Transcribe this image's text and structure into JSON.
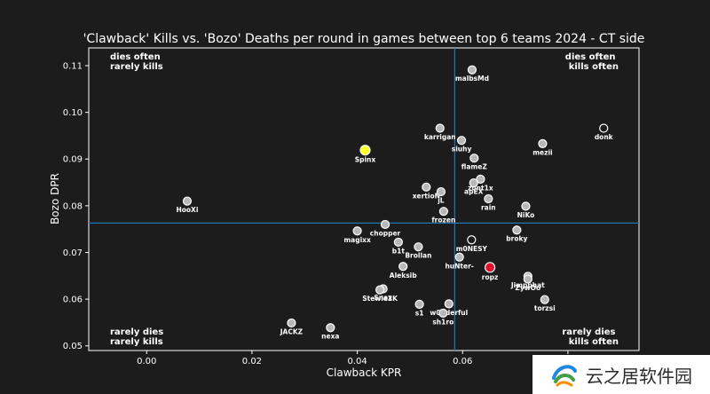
{
  "chart_data": {
    "type": "scatter",
    "title": "'Clawback' Kills vs. 'Bozo' Deaths per round in games between top 6 teams 2024 - CT side",
    "xlabel": "Clawback KPR",
    "ylabel": "Bozo DPR",
    "xlim": [
      -0.011,
      0.0935
    ],
    "ylim": [
      0.049,
      0.1138
    ],
    "xticks": [
      0.0,
      0.02,
      0.04,
      0.06,
      0.08
    ],
    "xtick_labels": [
      "0.00",
      "0.02",
      "0.04",
      "0.06",
      "0.08"
    ],
    "yticks": [
      0.05,
      0.06,
      0.07,
      0.08,
      0.09,
      0.1,
      0.11
    ],
    "ytick_labels": [
      "0.05",
      "0.06",
      "0.07",
      "0.08",
      "0.09",
      "0.10",
      "0.11"
    ],
    "grid": false,
    "reference_lines": {
      "x_mean": 0.0585,
      "y_mean": 0.0763
    },
    "quadrant_labels": {
      "top_left": [
        "dies often",
        "rarely kills"
      ],
      "top_right": [
        "dies often",
        "kills often"
      ],
      "bottom_left": [
        "rarely dies",
        "rarely kills"
      ],
      "bottom_right": [
        "rarely dies",
        "kills often"
      ]
    },
    "points": [
      {
        "name": "malbsMd",
        "x": 0.0618,
        "y": 0.1091
      },
      {
        "name": "donk",
        "x": 0.0868,
        "y": 0.0966,
        "style": "hollow"
      },
      {
        "name": "karrigan",
        "x": 0.0557,
        "y": 0.0966
      },
      {
        "name": "siuhy",
        "x": 0.0598,
        "y": 0.094
      },
      {
        "name": "mezii",
        "x": 0.0752,
        "y": 0.0933
      },
      {
        "name": "Spinx",
        "x": 0.0415,
        "y": 0.0919,
        "style": "yellow"
      },
      {
        "name": "flameZ",
        "x": 0.0622,
        "y": 0.0902
      },
      {
        "name": "zont1x",
        "x": 0.0634,
        "y": 0.0857
      },
      {
        "name": "apEX",
        "x": 0.0621,
        "y": 0.0849
      },
      {
        "name": "xertioN",
        "x": 0.0531,
        "y": 0.084
      },
      {
        "name": "jL",
        "x": 0.0559,
        "y": 0.083
      },
      {
        "name": "rain",
        "x": 0.0649,
        "y": 0.0815
      },
      {
        "name": "HooXi",
        "x": 0.0077,
        "y": 0.081
      },
      {
        "name": "NiKo",
        "x": 0.072,
        "y": 0.0799
      },
      {
        "name": "frozen",
        "x": 0.0564,
        "y": 0.0788
      },
      {
        "name": "chopper",
        "x": 0.0453,
        "y": 0.076
      },
      {
        "name": "magixx",
        "x": 0.04,
        "y": 0.0746
      },
      {
        "name": "broky",
        "x": 0.0703,
        "y": 0.0748
      },
      {
        "name": "m0NESY",
        "x": 0.0617,
        "y": 0.0727,
        "style": "hollow"
      },
      {
        "name": "b1t",
        "x": 0.0478,
        "y": 0.0722
      },
      {
        "name": "Brollan",
        "x": 0.0516,
        "y": 0.0712
      },
      {
        "name": "huNter-",
        "x": 0.0594,
        "y": 0.069
      },
      {
        "name": "Aleksib",
        "x": 0.0487,
        "y": 0.067
      },
      {
        "name": "ropz",
        "x": 0.0652,
        "y": 0.0668,
        "style": "red"
      },
      {
        "name": "Jimpphat",
        "x": 0.0724,
        "y": 0.0649
      },
      {
        "name": "ZywOo",
        "x": 0.0724,
        "y": 0.0643
      },
      {
        "name": "Snax",
        "x": 0.0449,
        "y": 0.0622
      },
      {
        "name": "Stewie2K",
        "x": 0.0443,
        "y": 0.062
      },
      {
        "name": "torzsi",
        "x": 0.0756,
        "y": 0.0599
      },
      {
        "name": "s1",
        "x": 0.0518,
        "y": 0.0589
      },
      {
        "name": "w0nderful",
        "x": 0.0574,
        "y": 0.059
      },
      {
        "name": "sh1ro",
        "x": 0.0563,
        "y": 0.057
      },
      {
        "name": "JACKZ",
        "x": 0.0275,
        "y": 0.0549
      },
      {
        "name": "nexa",
        "x": 0.0349,
        "y": 0.0539
      }
    ]
  },
  "colors": {
    "background": "#1c1c1c",
    "axes": "#ffffff",
    "reference": "#1f77b4",
    "point_fill": "#b8b8b8",
    "point_edge": "#ffffff",
    "highlight_yellow": "#ffff2a",
    "highlight_red": "#e0102a"
  },
  "watermark": {
    "text": "云之居软件园",
    "icon": "swirl-logo-icon"
  }
}
